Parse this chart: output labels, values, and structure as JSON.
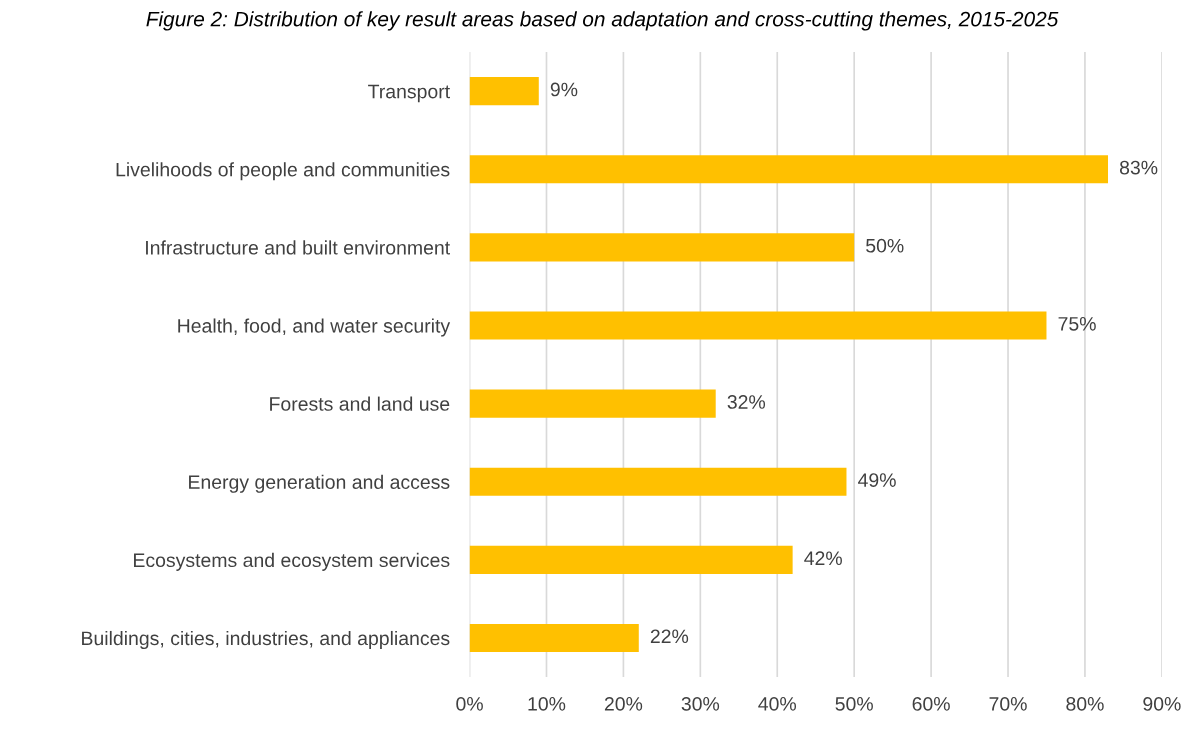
{
  "chart_data": {
    "type": "bar",
    "orientation": "horizontal",
    "title": "Figure 2: Distribution of key result areas based on adaptation and cross-cutting themes, 2015-2025",
    "categories": [
      "Transport",
      "Livelihoods of people and communities",
      "Infrastructure and built environment",
      "Health, food, and water security",
      "Forests and land use",
      "Energy generation and access",
      "Ecosystems and ecosystem services",
      "Buildings, cities, industries, and appliances"
    ],
    "values": [
      9,
      83,
      50,
      75,
      32,
      49,
      42,
      22
    ],
    "value_labels": [
      "9%",
      "83%",
      "50%",
      "75%",
      "32%",
      "49%",
      "42%",
      "22%"
    ],
    "color": "#ffc000",
    "xlim": [
      0,
      90
    ],
    "xticks": [
      {
        "value": 0,
        "label": "0%"
      },
      {
        "value": 10,
        "label": "10%"
      },
      {
        "value": 20,
        "label": "20%"
      },
      {
        "value": 30,
        "label": "30%"
      },
      {
        "value": 40,
        "label": "40%"
      },
      {
        "value": 50,
        "label": "50%"
      },
      {
        "value": 60,
        "label": "60%"
      },
      {
        "value": 70,
        "label": "70%"
      },
      {
        "value": 80,
        "label": "80%"
      },
      {
        "value": 90,
        "label": "90%"
      }
    ],
    "grid": "x",
    "legend": false
  }
}
